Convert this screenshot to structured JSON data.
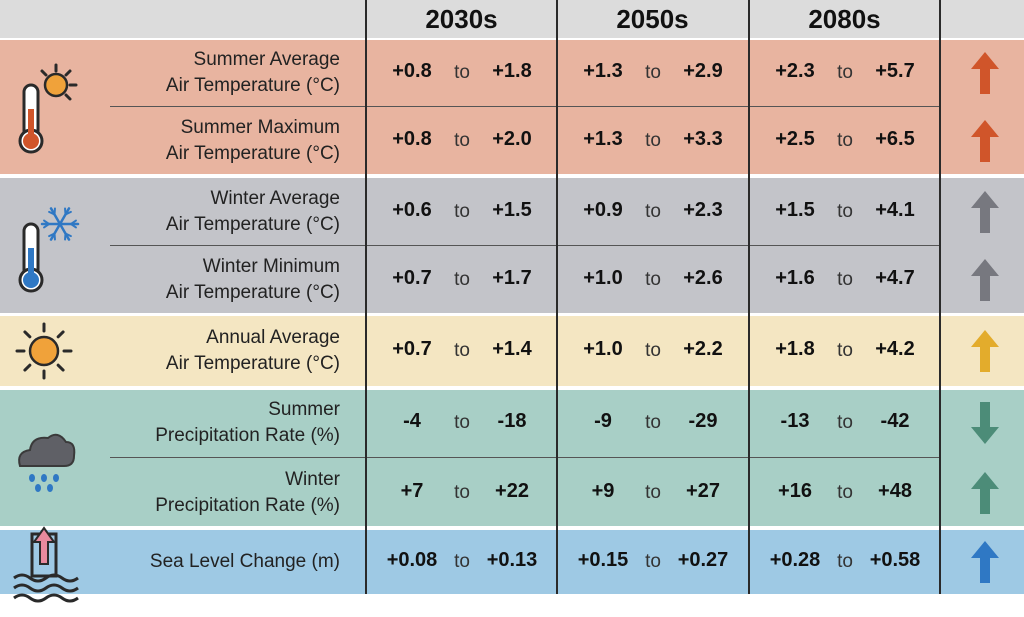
{
  "chart_data": {
    "type": "table",
    "columns": [
      "2030s",
      "2050s",
      "2080s"
    ],
    "range_word": "to",
    "groups": [
      {
        "icon": "thermometer-sun-icon",
        "color": "#e8b4a0",
        "arrow": {
          "direction": "up",
          "color": "#d0552a"
        },
        "rows": [
          {
            "label": [
              "Summer Average",
              "Air Temperature (°C)"
            ],
            "values": [
              [
                "+0.8",
                "+1.8"
              ],
              [
                "+1.3",
                "+2.9"
              ],
              [
                "+2.3",
                "+5.7"
              ]
            ]
          },
          {
            "label": [
              "Summer Maximum",
              "Air Temperature (°C)"
            ],
            "values": [
              [
                "+0.8",
                "+2.0"
              ],
              [
                "+1.3",
                "+3.3"
              ],
              [
                "+2.5",
                "+6.5"
              ]
            ]
          }
        ]
      },
      {
        "icon": "thermometer-snowflake-icon",
        "color": "#c3c4c9",
        "arrow": {
          "direction": "up",
          "color": "#77787f"
        },
        "rows": [
          {
            "label": [
              "Winter Average",
              "Air Temperature (°C)"
            ],
            "values": [
              [
                "+0.6",
                "+1.5"
              ],
              [
                "+0.9",
                "+2.3"
              ],
              [
                "+1.5",
                "+4.1"
              ]
            ]
          },
          {
            "label": [
              "Winter Minimum",
              "Air Temperature (°C)"
            ],
            "values": [
              [
                "+0.7",
                "+1.7"
              ],
              [
                "+1.0",
                "+2.6"
              ],
              [
                "+1.6",
                "+4.7"
              ]
            ]
          }
        ]
      },
      {
        "icon": "sun-icon",
        "color": "#f4e6c2",
        "arrow": {
          "direction": "up",
          "color": "#e3ac2c"
        },
        "rows": [
          {
            "label": [
              "Annual Average",
              "Air Temperature (°C)"
            ],
            "values": [
              [
                "+0.7",
                "+1.4"
              ],
              [
                "+1.0",
                "+2.2"
              ],
              [
                "+1.8",
                "+4.2"
              ]
            ]
          }
        ]
      },
      {
        "icon": "rain-cloud-icon",
        "color": "#a8cfc6",
        "arrow": null,
        "rows": [
          {
            "label": [
              "Summer",
              "Precipitation Rate (%)"
            ],
            "values": [
              [
                "-4",
                "-18"
              ],
              [
                "-9",
                "-29"
              ],
              [
                "-13",
                "-42"
              ]
            ],
            "arrow": {
              "direction": "down",
              "color": "#4c8c78"
            }
          },
          {
            "label": [
              "Winter",
              "Precipitation Rate (%)"
            ],
            "values": [
              [
                "+7",
                "+22"
              ],
              [
                "+9",
                "+27"
              ],
              [
                "+16",
                "+48"
              ]
            ],
            "arrow": {
              "direction": "up",
              "color": "#4c8c78"
            }
          }
        ]
      },
      {
        "icon": "sea-level-icon",
        "color": "#9ec9e4",
        "arrow": {
          "direction": "up",
          "color": "#2f78c4"
        },
        "rows": [
          {
            "label": [
              "Sea Level Change (m)"
            ],
            "values": [
              [
                "+0.08",
                "+0.13"
              ],
              [
                "+0.15",
                "+0.27"
              ],
              [
                "+0.28",
                "+0.58"
              ]
            ]
          }
        ]
      }
    ]
  }
}
